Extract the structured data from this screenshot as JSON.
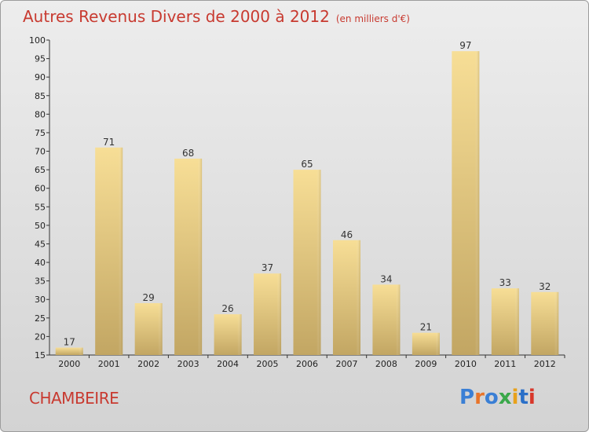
{
  "title": "Autres Revenus Divers de 2000 à 2012",
  "subtitle": "(en milliers d'€)",
  "city": "CHAMBEIRE",
  "logo": {
    "letters": [
      "P",
      "r",
      "o",
      "x",
      "i",
      "t",
      "i"
    ],
    "colors": [
      "#3a7fd5",
      "#e8742a",
      "#3a7fd5",
      "#3aa84a",
      "#e8a11a",
      "#2a6fc8",
      "#d8372a"
    ]
  },
  "colors": {
    "text_accent": "#c83a30",
    "bar_light": "#f5da90",
    "bar_dark": "#c4a865"
  },
  "chart_data": {
    "type": "bar",
    "categories": [
      "2000",
      "2001",
      "2002",
      "2003",
      "2004",
      "2005",
      "2006",
      "2007",
      "2008",
      "2009",
      "2010",
      "2011",
      "2012"
    ],
    "values": [
      17,
      71,
      29,
      68,
      26,
      37,
      65,
      46,
      34,
      21,
      97,
      33,
      32
    ],
    "ylim": [
      15,
      100
    ],
    "yticks": [
      15,
      20,
      25,
      30,
      35,
      40,
      45,
      50,
      55,
      60,
      65,
      70,
      75,
      80,
      85,
      90,
      95,
      100
    ],
    "grid": false,
    "xlabel": "",
    "ylabel": ""
  }
}
